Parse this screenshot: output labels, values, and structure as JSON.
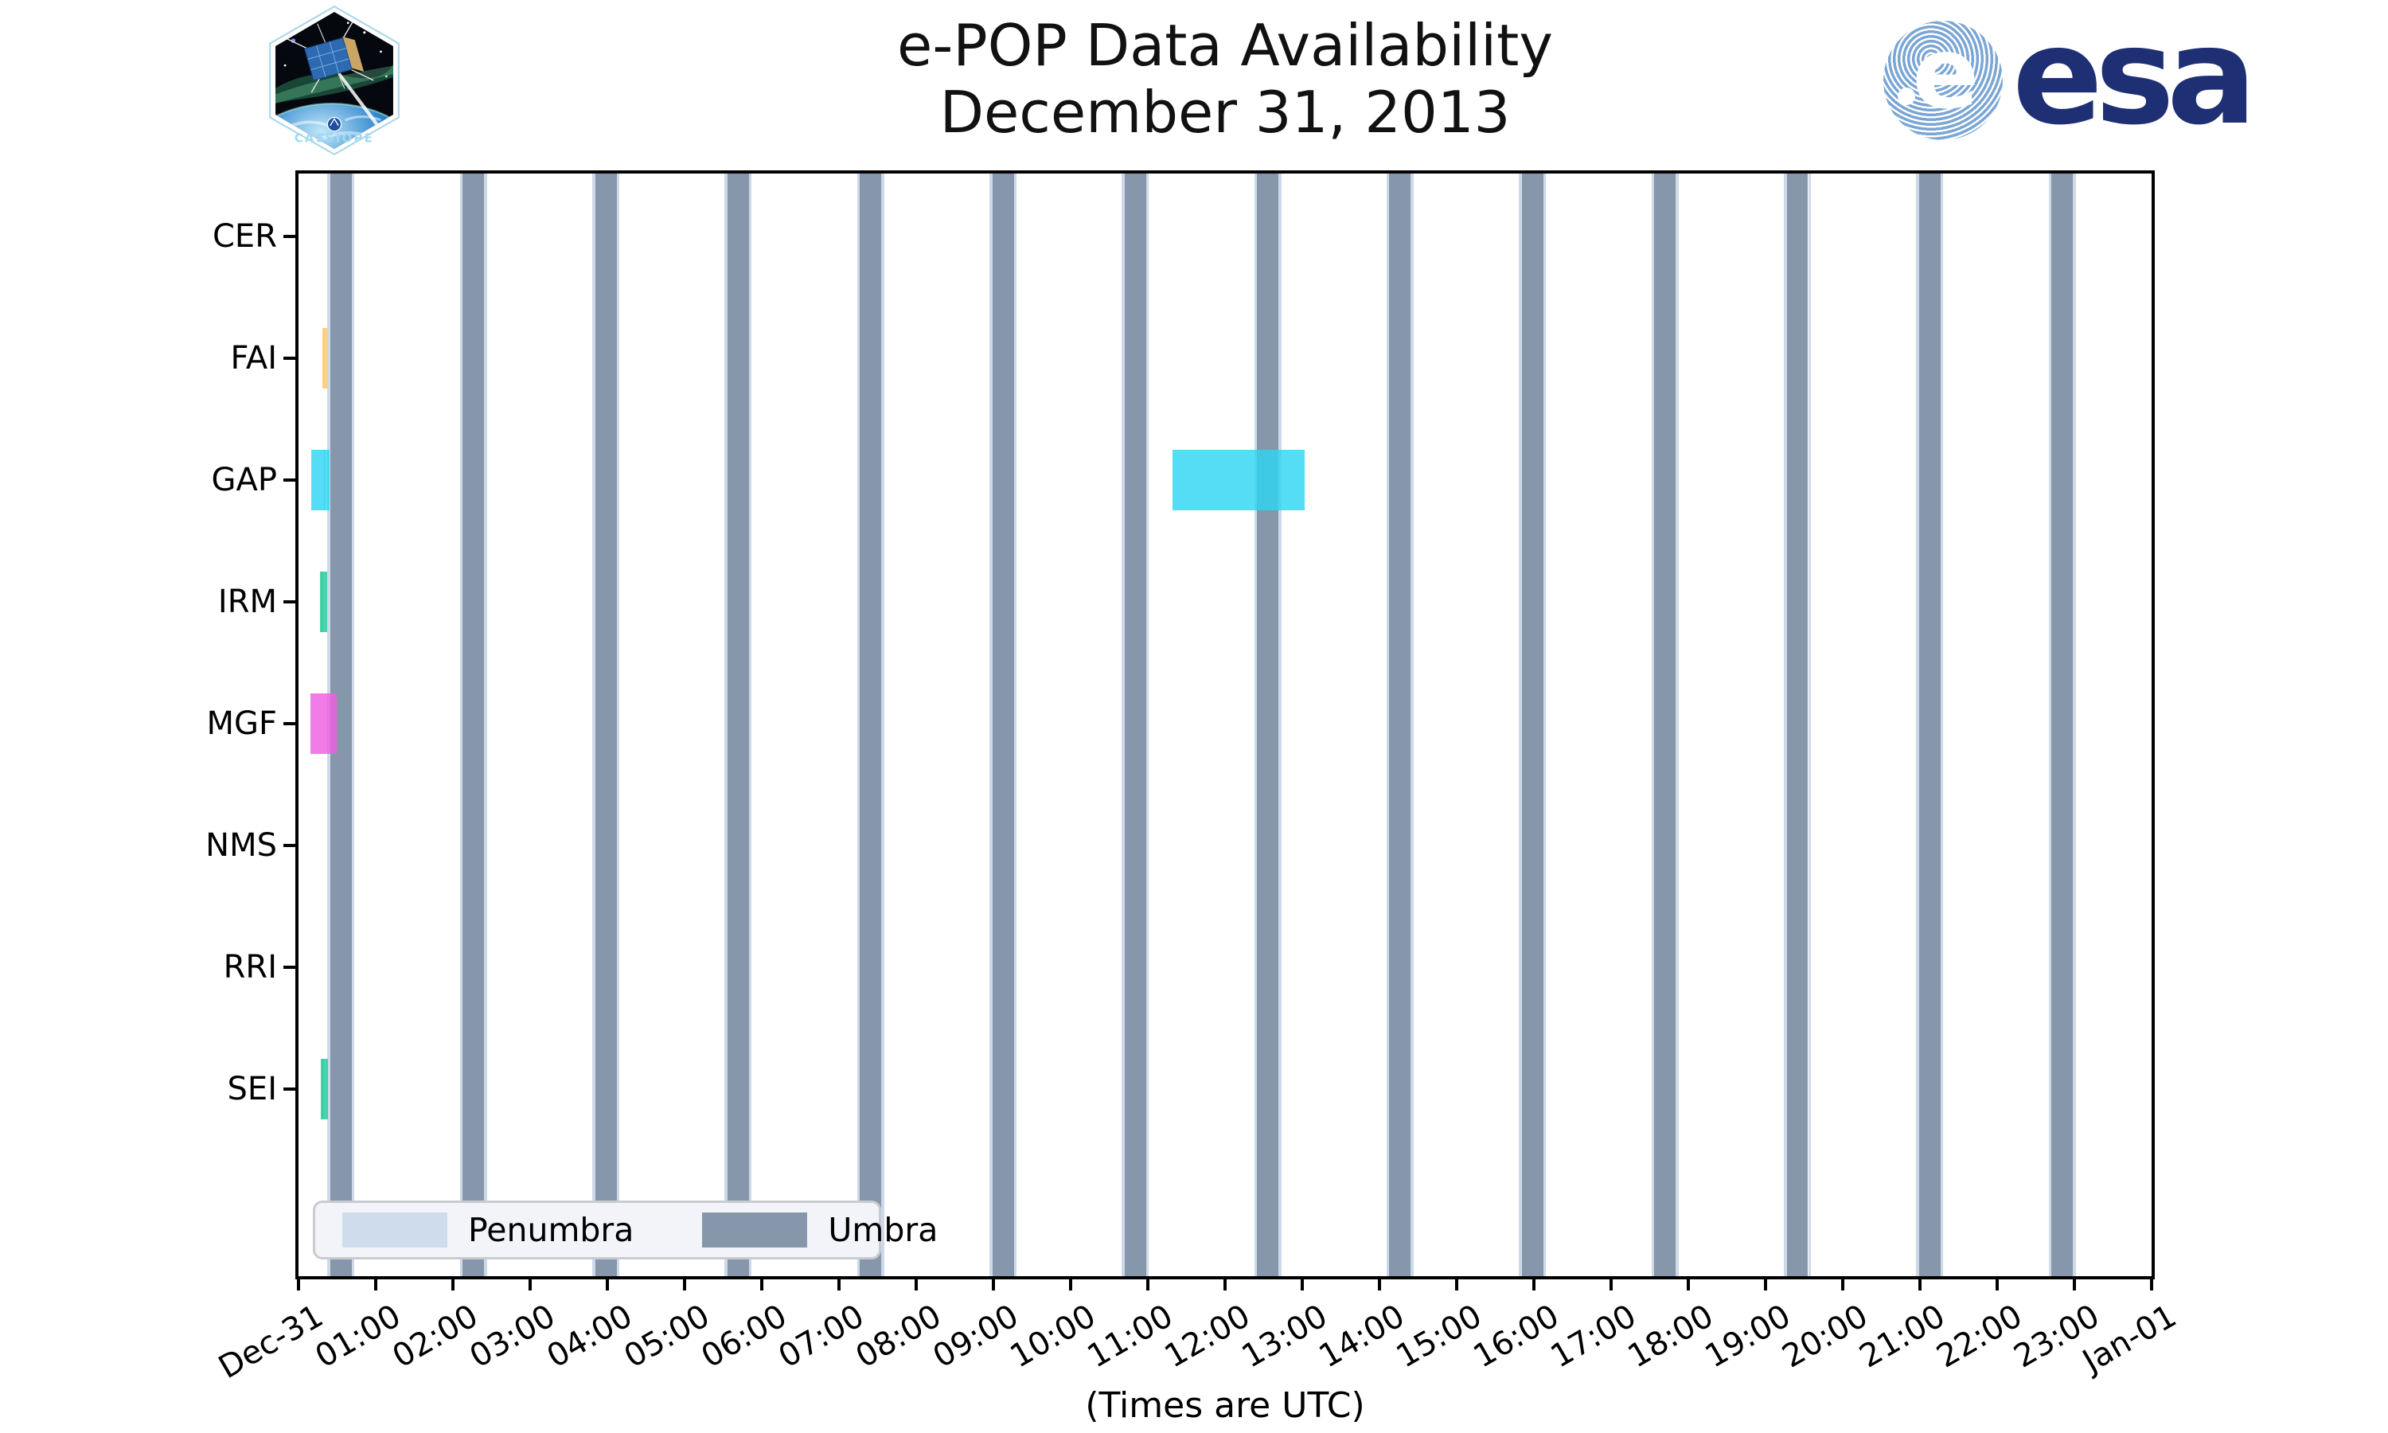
{
  "header": {
    "title_line1": "e-POP Data Availability",
    "title_line2": "December 31, 2013",
    "patch_mission": "CASSIOPE",
    "esa_wordmark": "esa",
    "esa_navy": "#1e2f74",
    "esa_globe_blue": "#7aa6d5"
  },
  "chart_data": {
    "type": "bar",
    "orientation": "horizontal-interval-timeline (instrument availability)",
    "title": "e-POP Data Availability",
    "subtitle": "December 31, 2013",
    "xlabel": "(Times are UTC)",
    "grid": false,
    "x_axis": {
      "start": "Dec-31 00:00",
      "end": "Jan-01 00:00",
      "range_min": [
        0,
        1440
      ],
      "tick_labels": [
        "Dec-31",
        "01:00",
        "02:00",
        "03:00",
        "04:00",
        "05:00",
        "06:00",
        "07:00",
        "08:00",
        "09:00",
        "10:00",
        "11:00",
        "12:00",
        "13:00",
        "14:00",
        "15:00",
        "16:00",
        "17:00",
        "18:00",
        "19:00",
        "20:00",
        "21:00",
        "22:00",
        "23:00",
        "Jan-01"
      ]
    },
    "y_axis": {
      "instruments": [
        "CER",
        "FAI",
        "GAP",
        "IRM",
        "MGF",
        "NMS",
        "RRI",
        "SEI"
      ]
    },
    "legend": {
      "position": "lower left",
      "entries": [
        {
          "label": "Penumbra",
          "color": "#cfdcec"
        },
        {
          "label": "Umbra",
          "color": "#8697ac"
        }
      ]
    },
    "bar_alpha": 0.82,
    "availability": [
      {
        "instrument": "FAI",
        "color": "#fcc561",
        "start": "00:18",
        "end": "00:23",
        "segments_min": [
          [
            18.5,
            22.5
          ]
        ]
      },
      {
        "instrument": "GAP",
        "color": "#2ed5f2",
        "start": "00:10",
        "end": "00:24",
        "segments_min": [
          [
            10.0,
            20.3
          ],
          [
            20.0,
            24.2
          ]
        ]
      },
      {
        "instrument": "GAP",
        "color": "#2ed5f2",
        "start": "11:19",
        "end": "13:02",
        "segments_min": [
          [
            679.0,
            782.0
          ]
        ]
      },
      {
        "instrument": "IRM",
        "color": "#1fcb98",
        "start": "00:17",
        "end": "00:22",
        "segments_min": [
          [
            16.7,
            18.3
          ],
          [
            18.0,
            22.3
          ]
        ]
      },
      {
        "instrument": "MGF",
        "color": "#ee5fe2",
        "start": "00:09",
        "end": "00:30",
        "segments_min": [
          [
            9.3,
            21.3
          ],
          [
            21.0,
            29.7
          ]
        ]
      },
      {
        "instrument": "SEI",
        "color": "#17:00",
        "end": "00:23",
        "segments_min_placeholder": []
      }
    ],
    "eclipse": {
      "umbra_color": "#8797ab",
      "penumbra_color": "#cdd9e9",
      "penumbra_edge_min": 2.2,
      "umbra_intervals_min": [
        [
          24.7,
          41.4
        ],
        [
          127.6,
          144.3
        ],
        [
          230.5,
          247.2
        ],
        [
          333.3,
          350.0
        ],
        [
          436.2,
          452.9
        ],
        [
          539.1,
          555.8
        ],
        [
          642.0,
          658.7
        ],
        [
          744.9,
          761.6
        ],
        [
          847.7,
          864.4
        ],
        [
          950.6,
          967.3
        ],
        [
          1053.5,
          1070.2
        ],
        [
          1156.4,
          1173.1
        ],
        [
          1259.2,
          1275.9
        ],
        [
          1362.1,
          1378.8
        ]
      ]
    }
  }
}
